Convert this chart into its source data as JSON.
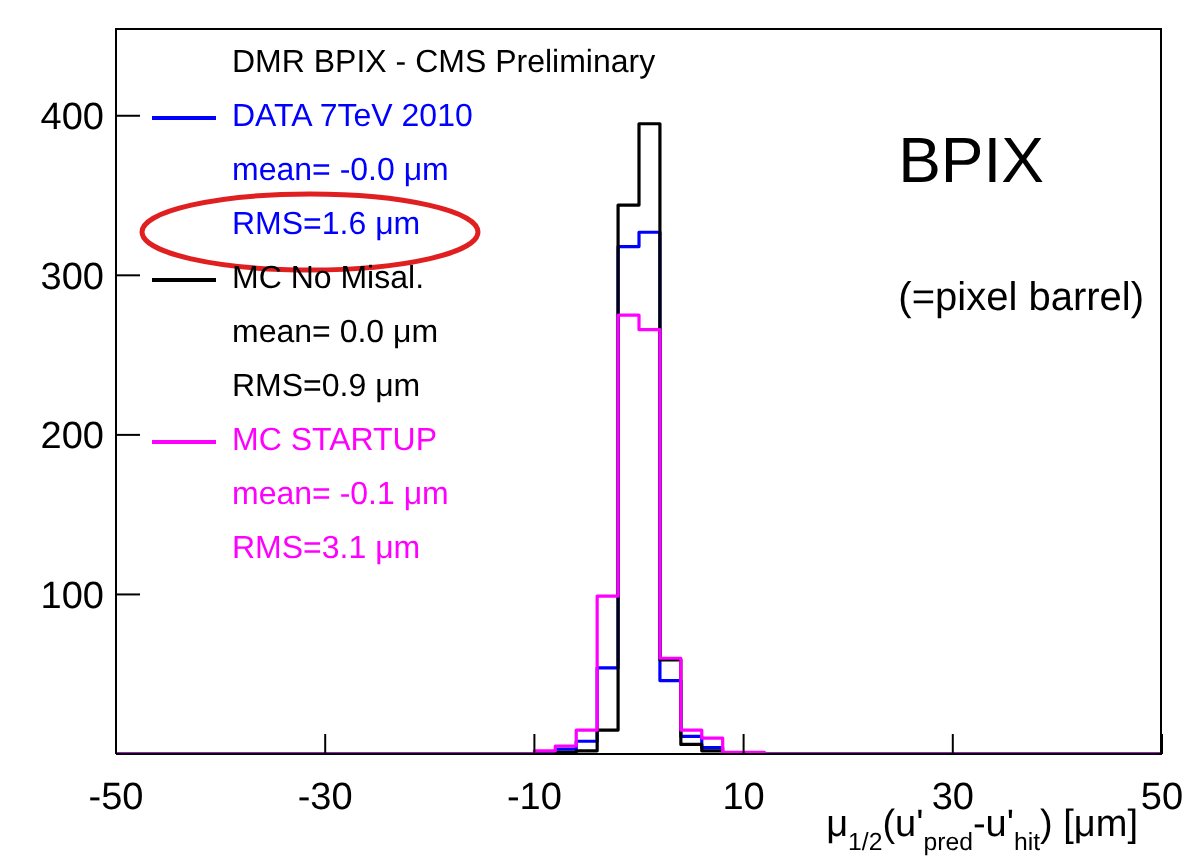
{
  "chart_data": {
    "type": "histogram",
    "legend_title": "DMR BPIX - CMS Preliminary",
    "xlabel": "μ$_{1/2}$(u'$_{pred}$-u'$_{hit}$) [μm]",
    "bins": [
      -50,
      -48,
      -46,
      -44,
      -42,
      -40,
      -38,
      -36,
      -34,
      -32,
      -30,
      -28,
      -26,
      -24,
      -22,
      -20,
      -18,
      -16,
      -14,
      -12,
      -10,
      -8,
      -6,
      -4,
      -2,
      0,
      2,
      4,
      6,
      8,
      10,
      12,
      14,
      16,
      18,
      20,
      22,
      24,
      26,
      28,
      30,
      32,
      34,
      36,
      38,
      40,
      42,
      44,
      46,
      48,
      50
    ],
    "series": [
      {
        "name": "DATA 7TeV 2010",
        "color": "#0000ff",
        "values": [
          0,
          0,
          0,
          0,
          0,
          0,
          0,
          0,
          0,
          0,
          0,
          0,
          0,
          0,
          0,
          0,
          0,
          0,
          0,
          0,
          1,
          3,
          8,
          54,
          318,
          327,
          46,
          11,
          4,
          0,
          0,
          0,
          0,
          0,
          0,
          0,
          0,
          0,
          0,
          0,
          0,
          0,
          0,
          0,
          0,
          0,
          0,
          0,
          0,
          0
        ]
      },
      {
        "name": "MC No Misal.",
        "color": "#000000",
        "values": [
          0,
          0,
          0,
          0,
          0,
          0,
          0,
          0,
          0,
          0,
          0,
          0,
          0,
          0,
          0,
          0,
          0,
          0,
          0,
          0,
          0,
          1,
          2,
          15,
          344,
          395,
          59,
          6,
          2,
          0,
          0,
          0,
          0,
          0,
          0,
          0,
          0,
          0,
          0,
          0,
          0,
          0,
          0,
          0,
          0,
          0,
          0,
          0,
          0,
          0
        ]
      },
      {
        "name": "MC STARTUP",
        "color": "#ff00ff",
        "values": [
          0,
          0,
          0,
          0,
          0,
          0,
          0,
          0,
          0,
          0,
          0,
          0,
          0,
          0,
          0,
          0,
          0,
          0,
          0,
          0,
          2,
          5,
          15,
          99,
          275,
          266,
          60,
          15,
          10,
          1,
          1,
          0,
          0,
          0,
          0,
          0,
          0,
          0,
          0,
          0,
          0,
          0,
          0,
          0,
          0,
          0,
          0,
          0,
          0,
          0
        ]
      }
    ],
    "annotations": [
      "mean= -0.0 μm",
      "RMS=1.6 μm",
      "mean= 0.0 μm",
      "RMS=0.9 μm",
      "mean= -0.1 μm",
      "RMS=3.1 μm",
      "BPIX",
      "(=pixel barrel)"
    ],
    "xlim": [
      -50,
      50
    ],
    "xticks": [
      -50,
      -30,
      -10,
      10,
      30,
      50
    ],
    "ylim": [
      0,
      455
    ],
    "yticks": [
      100,
      200,
      300,
      400
    ],
    "legend": "top left",
    "grid": false
  }
}
